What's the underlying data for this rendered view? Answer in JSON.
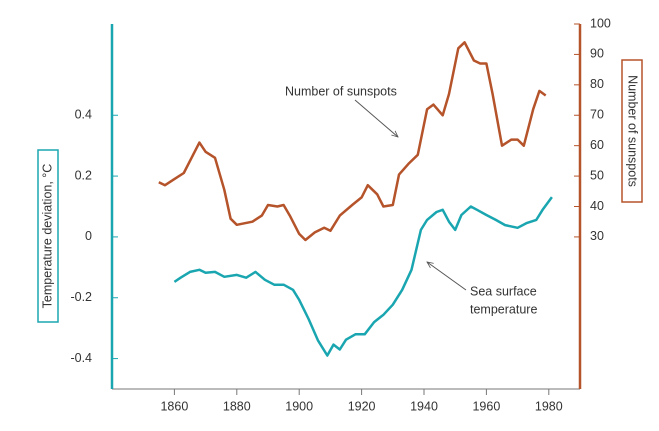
{
  "chart_data": {
    "type": "line",
    "ylabel": "Temperature deviation, °C",
    "y2label": "Number of sunspots",
    "xlim": [
      1840,
      1990
    ],
    "xticks": [
      1860,
      1880,
      1900,
      1920,
      1940,
      1960,
      1980
    ],
    "ylim": [
      -0.5,
      0.7
    ],
    "yticks": [
      -0.4,
      -0.2,
      0,
      0.2,
      0.4
    ],
    "y2lim": [
      -20,
      100
    ],
    "y2ticks": [
      30,
      40,
      50,
      60,
      70,
      80,
      90,
      100
    ],
    "left_axis_color": "#1aa6b0",
    "right_axis_color": "#b5532a",
    "series": [
      {
        "color": "#b5532a",
        "axis": "y2",
        "x": [
          1855,
          1857,
          1860,
          1863,
          1866,
          1868,
          1870,
          1873,
          1876,
          1878,
          1880,
          1885,
          1888,
          1890,
          1893,
          1895,
          1897,
          1900,
          1902,
          1905,
          1908,
          1910,
          1913,
          1917,
          1920,
          1922,
          1925,
          1927,
          1930,
          1932,
          1935,
          1938,
          1941,
          1943,
          1946,
          1948,
          1951,
          1953,
          1956,
          1958,
          1960,
          1962,
          1965,
          1968,
          1970,
          1972,
          1975,
          1977,
          1979
        ],
        "values": [
          48,
          47,
          49,
          51,
          57,
          61,
          58,
          56,
          45.5,
          36,
          34,
          35,
          37,
          40.5,
          40,
          40.5,
          37,
          31,
          29,
          31.5,
          33,
          32,
          37,
          40.5,
          43,
          47,
          44,
          40,
          40.5,
          50.5,
          54,
          57,
          72,
          73.5,
          70,
          77,
          92,
          94,
          88,
          87,
          87,
          77,
          60,
          62,
          62,
          60,
          72,
          78,
          76.5
        ]
      },
      {
        "color": "#1aa6b0",
        "axis": "y",
        "x": [
          1860,
          1862,
          1865,
          1868,
          1870,
          1873,
          1876,
          1880,
          1883,
          1886,
          1889,
          1892,
          1895,
          1898,
          1900,
          1903,
          1906,
          1909,
          1911,
          1913,
          1915,
          1918,
          1921,
          1924,
          1927,
          1930,
          1933,
          1936,
          1939,
          1941,
          1944,
          1946,
          1948,
          1950,
          1952,
          1955,
          1957,
          1960,
          1963,
          1966,
          1970,
          1973,
          1976,
          1978,
          1981
        ],
        "values": [
          -0.148,
          -0.134,
          -0.115,
          -0.108,
          -0.118,
          -0.115,
          -0.131,
          -0.125,
          -0.134,
          -0.115,
          -0.141,
          -0.157,
          -0.157,
          -0.174,
          -0.207,
          -0.27,
          -0.34,
          -0.39,
          -0.354,
          -0.37,
          -0.338,
          -0.32,
          -0.32,
          -0.28,
          -0.256,
          -0.223,
          -0.174,
          -0.108,
          0.023,
          0.056,
          0.082,
          0.089,
          0.05,
          0.023,
          0.072,
          0.1,
          0.089,
          0.072,
          0.056,
          0.039,
          0.03,
          0.046,
          0.056,
          0.089,
          0.131
        ]
      }
    ],
    "annotations": [
      {
        "lines": [
          "Number of sunspots"
        ]
      },
      {
        "lines": [
          "Sea surface",
          "temperature"
        ]
      }
    ]
  }
}
